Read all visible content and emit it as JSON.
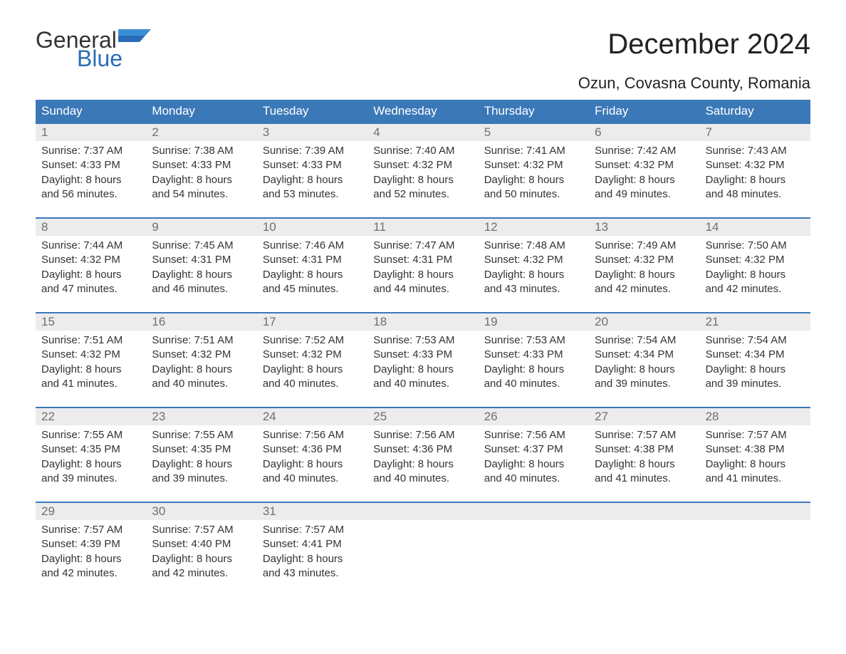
{
  "brand": {
    "word1": "General",
    "word2": "Blue",
    "accent_color": "#2a6db5",
    "text_color": "#333333"
  },
  "title": "December 2024",
  "location": "Ozun, Covasna County, Romania",
  "colors": {
    "header_bg": "#3b78b8",
    "header_text": "#ffffff",
    "daynum_bg": "#ececec",
    "daynum_text": "#6f6f6f",
    "body_text": "#333333",
    "week_border": "#3b78b8",
    "page_bg": "#ffffff"
  },
  "day_names": [
    "Sunday",
    "Monday",
    "Tuesday",
    "Wednesday",
    "Thursday",
    "Friday",
    "Saturday"
  ],
  "weeks": [
    [
      {
        "n": "1",
        "sunrise": "Sunrise: 7:37 AM",
        "sunset": "Sunset: 4:33 PM",
        "dl1": "Daylight: 8 hours",
        "dl2": "and 56 minutes."
      },
      {
        "n": "2",
        "sunrise": "Sunrise: 7:38 AM",
        "sunset": "Sunset: 4:33 PM",
        "dl1": "Daylight: 8 hours",
        "dl2": "and 54 minutes."
      },
      {
        "n": "3",
        "sunrise": "Sunrise: 7:39 AM",
        "sunset": "Sunset: 4:33 PM",
        "dl1": "Daylight: 8 hours",
        "dl2": "and 53 minutes."
      },
      {
        "n": "4",
        "sunrise": "Sunrise: 7:40 AM",
        "sunset": "Sunset: 4:32 PM",
        "dl1": "Daylight: 8 hours",
        "dl2": "and 52 minutes."
      },
      {
        "n": "5",
        "sunrise": "Sunrise: 7:41 AM",
        "sunset": "Sunset: 4:32 PM",
        "dl1": "Daylight: 8 hours",
        "dl2": "and 50 minutes."
      },
      {
        "n": "6",
        "sunrise": "Sunrise: 7:42 AM",
        "sunset": "Sunset: 4:32 PM",
        "dl1": "Daylight: 8 hours",
        "dl2": "and 49 minutes."
      },
      {
        "n": "7",
        "sunrise": "Sunrise: 7:43 AM",
        "sunset": "Sunset: 4:32 PM",
        "dl1": "Daylight: 8 hours",
        "dl2": "and 48 minutes."
      }
    ],
    [
      {
        "n": "8",
        "sunrise": "Sunrise: 7:44 AM",
        "sunset": "Sunset: 4:32 PM",
        "dl1": "Daylight: 8 hours",
        "dl2": "and 47 minutes."
      },
      {
        "n": "9",
        "sunrise": "Sunrise: 7:45 AM",
        "sunset": "Sunset: 4:31 PM",
        "dl1": "Daylight: 8 hours",
        "dl2": "and 46 minutes."
      },
      {
        "n": "10",
        "sunrise": "Sunrise: 7:46 AM",
        "sunset": "Sunset: 4:31 PM",
        "dl1": "Daylight: 8 hours",
        "dl2": "and 45 minutes."
      },
      {
        "n": "11",
        "sunrise": "Sunrise: 7:47 AM",
        "sunset": "Sunset: 4:31 PM",
        "dl1": "Daylight: 8 hours",
        "dl2": "and 44 minutes."
      },
      {
        "n": "12",
        "sunrise": "Sunrise: 7:48 AM",
        "sunset": "Sunset: 4:32 PM",
        "dl1": "Daylight: 8 hours",
        "dl2": "and 43 minutes."
      },
      {
        "n": "13",
        "sunrise": "Sunrise: 7:49 AM",
        "sunset": "Sunset: 4:32 PM",
        "dl1": "Daylight: 8 hours",
        "dl2": "and 42 minutes."
      },
      {
        "n": "14",
        "sunrise": "Sunrise: 7:50 AM",
        "sunset": "Sunset: 4:32 PM",
        "dl1": "Daylight: 8 hours",
        "dl2": "and 42 minutes."
      }
    ],
    [
      {
        "n": "15",
        "sunrise": "Sunrise: 7:51 AM",
        "sunset": "Sunset: 4:32 PM",
        "dl1": "Daylight: 8 hours",
        "dl2": "and 41 minutes."
      },
      {
        "n": "16",
        "sunrise": "Sunrise: 7:51 AM",
        "sunset": "Sunset: 4:32 PM",
        "dl1": "Daylight: 8 hours",
        "dl2": "and 40 minutes."
      },
      {
        "n": "17",
        "sunrise": "Sunrise: 7:52 AM",
        "sunset": "Sunset: 4:32 PM",
        "dl1": "Daylight: 8 hours",
        "dl2": "and 40 minutes."
      },
      {
        "n": "18",
        "sunrise": "Sunrise: 7:53 AM",
        "sunset": "Sunset: 4:33 PM",
        "dl1": "Daylight: 8 hours",
        "dl2": "and 40 minutes."
      },
      {
        "n": "19",
        "sunrise": "Sunrise: 7:53 AM",
        "sunset": "Sunset: 4:33 PM",
        "dl1": "Daylight: 8 hours",
        "dl2": "and 40 minutes."
      },
      {
        "n": "20",
        "sunrise": "Sunrise: 7:54 AM",
        "sunset": "Sunset: 4:34 PM",
        "dl1": "Daylight: 8 hours",
        "dl2": "and 39 minutes."
      },
      {
        "n": "21",
        "sunrise": "Sunrise: 7:54 AM",
        "sunset": "Sunset: 4:34 PM",
        "dl1": "Daylight: 8 hours",
        "dl2": "and 39 minutes."
      }
    ],
    [
      {
        "n": "22",
        "sunrise": "Sunrise: 7:55 AM",
        "sunset": "Sunset: 4:35 PM",
        "dl1": "Daylight: 8 hours",
        "dl2": "and 39 minutes."
      },
      {
        "n": "23",
        "sunrise": "Sunrise: 7:55 AM",
        "sunset": "Sunset: 4:35 PM",
        "dl1": "Daylight: 8 hours",
        "dl2": "and 39 minutes."
      },
      {
        "n": "24",
        "sunrise": "Sunrise: 7:56 AM",
        "sunset": "Sunset: 4:36 PM",
        "dl1": "Daylight: 8 hours",
        "dl2": "and 40 minutes."
      },
      {
        "n": "25",
        "sunrise": "Sunrise: 7:56 AM",
        "sunset": "Sunset: 4:36 PM",
        "dl1": "Daylight: 8 hours",
        "dl2": "and 40 minutes."
      },
      {
        "n": "26",
        "sunrise": "Sunrise: 7:56 AM",
        "sunset": "Sunset: 4:37 PM",
        "dl1": "Daylight: 8 hours",
        "dl2": "and 40 minutes."
      },
      {
        "n": "27",
        "sunrise": "Sunrise: 7:57 AM",
        "sunset": "Sunset: 4:38 PM",
        "dl1": "Daylight: 8 hours",
        "dl2": "and 41 minutes."
      },
      {
        "n": "28",
        "sunrise": "Sunrise: 7:57 AM",
        "sunset": "Sunset: 4:38 PM",
        "dl1": "Daylight: 8 hours",
        "dl2": "and 41 minutes."
      }
    ],
    [
      {
        "n": "29",
        "sunrise": "Sunrise: 7:57 AM",
        "sunset": "Sunset: 4:39 PM",
        "dl1": "Daylight: 8 hours",
        "dl2": "and 42 minutes."
      },
      {
        "n": "30",
        "sunrise": "Sunrise: 7:57 AM",
        "sunset": "Sunset: 4:40 PM",
        "dl1": "Daylight: 8 hours",
        "dl2": "and 42 minutes."
      },
      {
        "n": "31",
        "sunrise": "Sunrise: 7:57 AM",
        "sunset": "Sunset: 4:41 PM",
        "dl1": "Daylight: 8 hours",
        "dl2": "and 43 minutes."
      },
      {
        "empty": true
      },
      {
        "empty": true
      },
      {
        "empty": true
      },
      {
        "empty": true
      }
    ]
  ]
}
